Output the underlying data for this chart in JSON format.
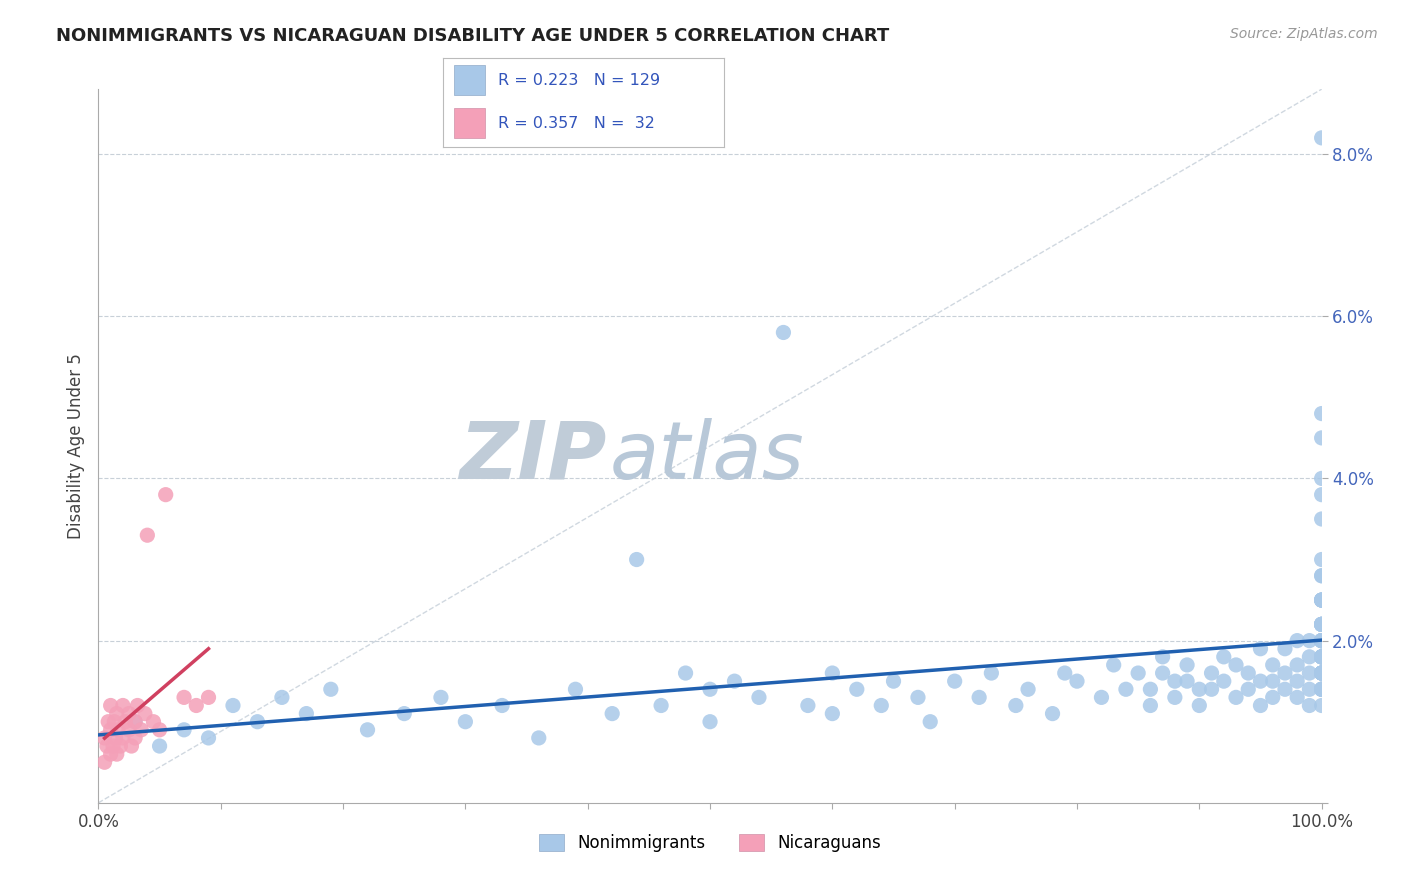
{
  "title": "NONIMMIGRANTS VS NICARAGUAN DISABILITY AGE UNDER 5 CORRELATION CHART",
  "source": "Source: ZipAtlas.com",
  "ylabel": "Disability Age Under 5",
  "legend_labels": [
    "Nonimmigrants",
    "Nicaraguans"
  ],
  "blue_color": "#a8c8e8",
  "pink_color": "#f4a0b8",
  "line_blue": "#2060b0",
  "line_pink": "#d04060",
  "diag_color": "#d0d8e0",
  "grid_color": "#c8d0d8",
  "watermark_zip_color": "#c8d4e0",
  "watermark_atlas_color": "#b0c0d4",
  "xlim": [
    0.0,
    1.0
  ],
  "ylim": [
    0.0,
    0.088
  ],
  "xtick_positions": [
    0.0,
    0.1,
    0.2,
    0.3,
    0.4,
    0.5,
    0.6,
    0.7,
    0.8,
    0.9,
    1.0
  ],
  "xtick_labels": [
    "0.0%",
    "",
    "",
    "",
    "",
    "",
    "",
    "",
    "",
    "",
    "100.0%"
  ],
  "ytick_vals": [
    0.0,
    0.02,
    0.04,
    0.06,
    0.08
  ],
  "ytick_labels": [
    "",
    "2.0%",
    "4.0%",
    "6.0%",
    "8.0%"
  ],
  "blue_x": [
    0.03,
    0.05,
    0.07,
    0.09,
    0.11,
    0.13,
    0.15,
    0.17,
    0.19,
    0.22,
    0.25,
    0.28,
    0.3,
    0.33,
    0.36,
    0.39,
    0.42,
    0.44,
    0.46,
    0.48,
    0.5,
    0.5,
    0.52,
    0.54,
    0.56,
    0.58,
    0.6,
    0.6,
    0.62,
    0.64,
    0.65,
    0.67,
    0.68,
    0.7,
    0.72,
    0.73,
    0.75,
    0.76,
    0.78,
    0.79,
    0.8,
    0.82,
    0.83,
    0.84,
    0.85,
    0.86,
    0.86,
    0.87,
    0.87,
    0.88,
    0.88,
    0.89,
    0.89,
    0.9,
    0.9,
    0.91,
    0.91,
    0.92,
    0.92,
    0.93,
    0.93,
    0.94,
    0.94,
    0.95,
    0.95,
    0.95,
    0.96,
    0.96,
    0.96,
    0.97,
    0.97,
    0.97,
    0.98,
    0.98,
    0.98,
    0.98,
    0.99,
    0.99,
    0.99,
    0.99,
    0.99,
    1.0,
    1.0,
    1.0,
    1.0,
    1.0,
    1.0,
    1.0,
    1.0,
    1.0,
    1.0,
    1.0,
    1.0,
    1.0,
    1.0,
    1.0,
    1.0,
    1.0,
    1.0,
    1.0,
    1.0,
    1.0,
    1.0,
    1.0,
    1.0,
    1.0,
    1.0,
    1.0,
    1.0,
    1.0,
    1.0,
    1.0,
    1.0,
    1.0,
    1.0,
    1.0,
    1.0,
    1.0,
    1.0,
    1.0,
    1.0,
    1.0,
    1.0,
    1.0,
    1.0,
    1.0,
    1.0,
    1.0,
    1.0,
    1.0
  ],
  "blue_y": [
    0.01,
    0.007,
    0.009,
    0.008,
    0.012,
    0.01,
    0.013,
    0.011,
    0.014,
    0.009,
    0.011,
    0.013,
    0.01,
    0.012,
    0.008,
    0.014,
    0.011,
    0.03,
    0.012,
    0.016,
    0.014,
    0.01,
    0.015,
    0.013,
    0.058,
    0.012,
    0.016,
    0.011,
    0.014,
    0.012,
    0.015,
    0.013,
    0.01,
    0.015,
    0.013,
    0.016,
    0.012,
    0.014,
    0.011,
    0.016,
    0.015,
    0.013,
    0.017,
    0.014,
    0.016,
    0.014,
    0.012,
    0.018,
    0.016,
    0.015,
    0.013,
    0.017,
    0.015,
    0.014,
    0.012,
    0.016,
    0.014,
    0.018,
    0.015,
    0.017,
    0.013,
    0.016,
    0.014,
    0.019,
    0.015,
    0.012,
    0.017,
    0.015,
    0.013,
    0.019,
    0.016,
    0.014,
    0.02,
    0.017,
    0.015,
    0.013,
    0.02,
    0.018,
    0.016,
    0.014,
    0.012,
    0.022,
    0.02,
    0.018,
    0.016,
    0.014,
    0.012,
    0.022,
    0.02,
    0.018,
    0.016,
    0.014,
    0.025,
    0.022,
    0.02,
    0.018,
    0.016,
    0.014,
    0.025,
    0.022,
    0.02,
    0.018,
    0.016,
    0.014,
    0.025,
    0.022,
    0.02,
    0.018,
    0.016,
    0.014,
    0.028,
    0.025,
    0.022,
    0.02,
    0.018,
    0.016,
    0.03,
    0.028,
    0.025,
    0.022,
    0.02,
    0.018,
    0.016,
    0.035,
    0.045,
    0.048,
    0.04,
    0.082,
    0.038,
    0.02
  ],
  "pink_x": [
    0.005,
    0.005,
    0.007,
    0.008,
    0.01,
    0.01,
    0.01,
    0.012,
    0.013,
    0.014,
    0.015,
    0.015,
    0.016,
    0.018,
    0.02,
    0.02,
    0.022,
    0.025,
    0.025,
    0.027,
    0.03,
    0.03,
    0.032,
    0.035,
    0.038,
    0.04,
    0.045,
    0.05,
    0.055,
    0.07,
    0.08,
    0.09
  ],
  "pink_y": [
    0.005,
    0.008,
    0.007,
    0.01,
    0.006,
    0.009,
    0.012,
    0.007,
    0.01,
    0.008,
    0.006,
    0.011,
    0.009,
    0.007,
    0.008,
    0.012,
    0.01,
    0.009,
    0.011,
    0.007,
    0.01,
    0.008,
    0.012,
    0.009,
    0.011,
    0.033,
    0.01,
    0.009,
    0.038,
    0.013,
    0.012,
    0.013
  ]
}
